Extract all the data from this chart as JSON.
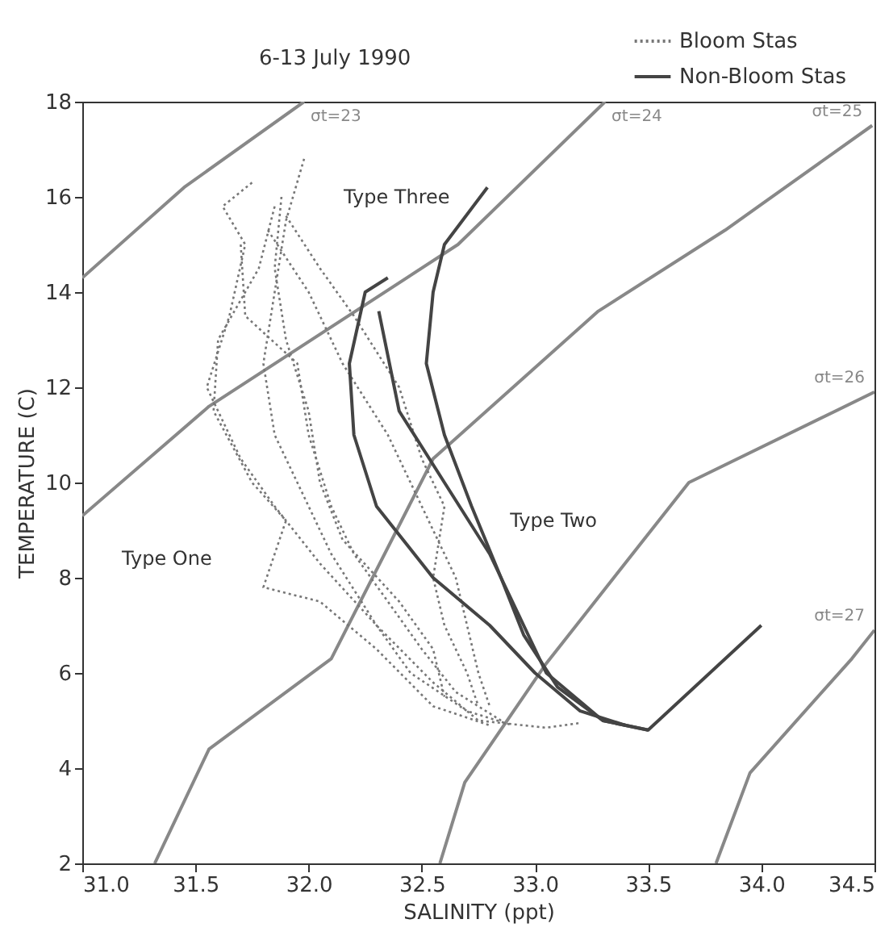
{
  "chart_data": {
    "type": "line",
    "title": "6-13 July 1990",
    "xlabel": "SALINITY (ppt)",
    "ylabel": "TEMPERATURE (C)",
    "xlim": [
      31.0,
      34.5
    ],
    "xticks": [
      {
        "value": 31,
        "label": "31.0"
      },
      31.5,
      {
        "value": 32,
        "label": "32.0"
      },
      32.5,
      {
        "value": 33,
        "label": "33.0"
      },
      33.5,
      {
        "value": 34,
        "label": "34.0"
      },
      34.5
    ],
    "ylim": [
      2,
      18
    ],
    "yticks": [
      2,
      4,
      6,
      8,
      10,
      12,
      14,
      16,
      18
    ],
    "grid": false,
    "legend": "top right",
    "marker": "none",
    "series": [
      {
        "name": "σt=23",
        "color": "#888888",
        "line_style": "solid",
        "x": [
          31.0,
          31.45,
          31.98
        ],
        "values": [
          14.3,
          16.2,
          18
        ]
      },
      {
        "name": "σt=24",
        "color": "#888888",
        "line_style": "solid",
        "x": [
          31.0,
          31.56,
          32.66,
          33.31
        ],
        "values": [
          9.3,
          11.6,
          15.0,
          18
        ]
      },
      {
        "name": "σt=25",
        "color": "#888888",
        "line_style": "solid",
        "x": [
          31.32,
          31.56,
          32.1,
          32.55,
          33.28,
          33.84,
          34.49
        ],
        "values": [
          2,
          4.4,
          6.3,
          10.5,
          13.6,
          15.3,
          17.5
        ]
      },
      {
        "name": "σt=26",
        "color": "#888888",
        "line_style": "solid",
        "x": [
          32.58,
          32.69,
          33.05,
          33.68,
          34.5
        ],
        "values": [
          2,
          3.7,
          6.2,
          10.0,
          11.9
        ]
      },
      {
        "name": "σt=27",
        "color": "#888888",
        "line_style": "solid",
        "x": [
          33.8,
          33.95,
          34.4,
          34.5
        ],
        "values": [
          2,
          3.9,
          6.3,
          6.9
        ]
      },
      {
        "name": "Bloom Stas",
        "color": "#777777",
        "line_style": "dotted",
        "x": [
          31.75,
          31.62,
          31.72,
          31.65,
          31.55,
          31.7,
          31.85,
          32.05,
          32.3,
          32.55,
          32.75,
          33.05,
          33.2
        ],
        "values": [
          16.3,
          15.8,
          15.0,
          13.5,
          12.0,
          10.5,
          9.5,
          8.3,
          7.0,
          5.8,
          5.0,
          4.85,
          4.95
        ]
      },
      {
        "color": "#777777",
        "line_style": "dotted",
        "x": [
          31.98,
          31.9,
          31.85,
          31.8,
          31.85,
          32.0,
          32.1,
          32.3,
          32.45,
          32.7,
          32.9
        ],
        "values": [
          16.8,
          15.5,
          14.0,
          12.5,
          11.0,
          9.5,
          8.5,
          7.0,
          6.0,
          5.2,
          4.9
        ]
      },
      {
        "color": "#777777",
        "line_style": "dotted",
        "x": [
          31.85,
          31.78,
          31.6,
          31.58,
          31.75,
          31.9,
          31.8,
          32.05,
          32.3,
          32.55,
          32.8
        ],
        "values": [
          15.8,
          14.5,
          13.0,
          11.5,
          10.0,
          9.2,
          7.8,
          7.5,
          6.5,
          5.3,
          4.9
        ]
      },
      {
        "color": "#777777",
        "line_style": "dotted",
        "x": [
          31.9,
          32.05,
          32.2,
          32.4,
          32.5,
          32.6,
          32.55,
          32.6,
          32.7,
          32.75
        ],
        "values": [
          15.6,
          14.5,
          13.5,
          12.0,
          10.5,
          9.5,
          8.0,
          7.0,
          6.0,
          5.3
        ]
      },
      {
        "color": "#777777",
        "line_style": "dotted",
        "x": [
          31.82,
          32.0,
          32.15,
          32.35,
          32.5,
          32.65,
          32.7,
          32.75,
          32.8
        ],
        "values": [
          15.3,
          14.0,
          12.5,
          11.0,
          9.5,
          8.0,
          7.0,
          6.0,
          5.3
        ]
      },
      {
        "color": "#777777",
        "line_style": "dotted",
        "x": [
          31.7,
          31.72,
          31.95,
          32.0,
          32.1,
          32.2,
          32.35,
          32.5,
          32.65,
          32.85
        ],
        "values": [
          15.0,
          13.5,
          12.5,
          11.0,
          9.5,
          8.5,
          7.5,
          6.5,
          5.6,
          5.0
        ]
      },
      {
        "color": "#777777",
        "line_style": "dotted",
        "x": [
          31.88,
          31.85,
          31.9,
          32.0,
          32.05,
          32.15,
          32.4,
          32.55,
          32.6
        ],
        "values": [
          16.0,
          14.5,
          13.0,
          11.5,
          10.0,
          8.8,
          7.5,
          6.5,
          5.5
        ]
      },
      {
        "name": "Non-Bloom Stas",
        "color": "#444444",
        "line_style": "solid",
        "x": [
          32.79,
          32.6,
          32.55,
          32.52,
          32.6,
          32.72,
          32.85,
          32.95,
          33.1,
          33.3,
          33.5,
          34.0
        ],
        "values": [
          16.2,
          15.0,
          14.0,
          12.5,
          11.0,
          9.5,
          8.0,
          6.8,
          5.7,
          5.0,
          4.8,
          7.0
        ]
      },
      {
        "color": "#444444",
        "line_style": "solid",
        "x": [
          32.35,
          32.25,
          32.18,
          32.2,
          32.3,
          32.55,
          32.8,
          33.0,
          33.2,
          33.4
        ],
        "values": [
          14.3,
          14.0,
          12.5,
          11.0,
          9.5,
          8.0,
          7.0,
          6.0,
          5.2,
          4.9
        ]
      },
      {
        "color": "#444444",
        "line_style": "solid",
        "x": [
          32.31,
          32.4,
          32.6,
          32.8,
          32.95,
          33.05,
          33.3,
          33.5
        ],
        "values": [
          13.6,
          11.5,
          10.0,
          8.5,
          7.0,
          6.0,
          5.0,
          4.8
        ]
      }
    ],
    "annotations": [
      "Type Three",
      "Type Two",
      "Type One"
    ]
  }
}
